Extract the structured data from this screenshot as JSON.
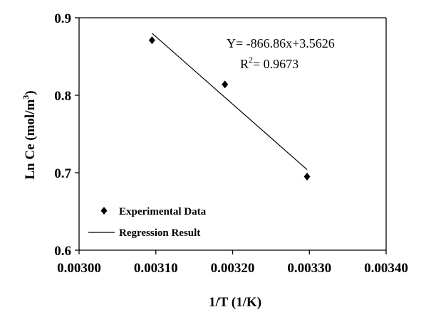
{
  "chart_data": {
    "type": "scatter",
    "xlabel": "1/T (1/K)",
    "ylabel": "Ln Ce (mol/m",
    "ylabel_sup": "3",
    "ylabel_suffix": ")",
    "xlim": [
      0.003,
      0.0034
    ],
    "ylim": [
      0.6,
      0.9
    ],
    "x_ticks": [
      {
        "value": 0.003,
        "label": "0.00300"
      },
      {
        "value": 0.0031,
        "label": "0.00310"
      },
      {
        "value": 0.0032,
        "label": "0.00320"
      },
      {
        "value": 0.0033,
        "label": "0.00330"
      },
      {
        "value": 0.0034,
        "label": "0.00340"
      }
    ],
    "y_ticks": [
      {
        "value": 0.6,
        "label": "0.6"
      },
      {
        "value": 0.7,
        "label": "0.7"
      },
      {
        "value": 0.8,
        "label": "0.8"
      },
      {
        "value": 0.9,
        "label": "0.9"
      }
    ],
    "grid": false,
    "legend_position": "bottom-left",
    "series": [
      {
        "name": "Experimental Data",
        "type": "scatter",
        "marker": "diamond",
        "color": "#000000",
        "x": [
          0.003095,
          0.00319,
          0.003297
        ],
        "y": [
          0.871,
          0.814,
          0.695
        ]
      },
      {
        "name": "Regression Result",
        "type": "line",
        "color": "#000000",
        "x": [
          0.003095,
          0.003297
        ],
        "y": [
          0.88,
          0.704
        ]
      }
    ],
    "annotation": {
      "equation": "Y= -866.86x+3.5626",
      "r2_prefix": "R",
      "r2_sup": "2",
      "r2_value": "= 0.9673"
    }
  }
}
